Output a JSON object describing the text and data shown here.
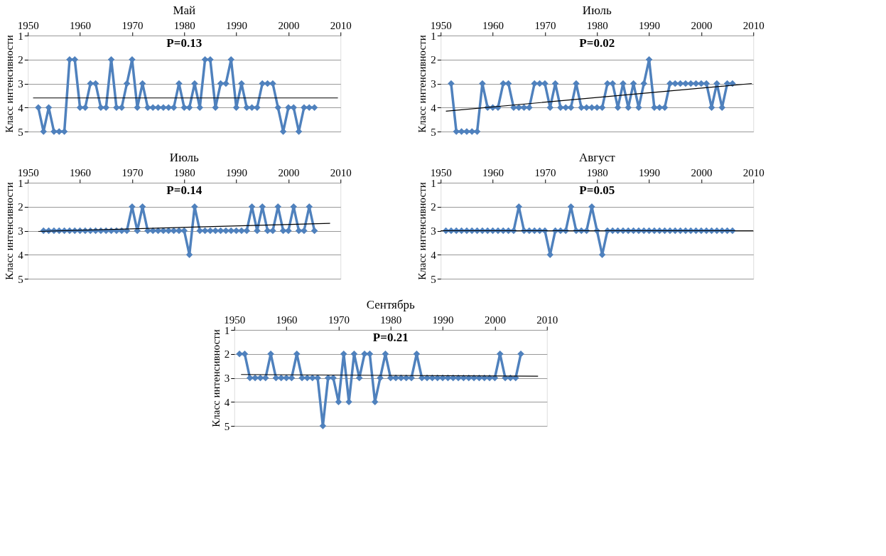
{
  "chart_data": [
    {
      "type": "line",
      "title": "Май",
      "ylabel": "Класс интенсивности",
      "annotations": [
        "P=0.13"
      ],
      "xlim": [
        1950,
        2010
      ],
      "xticks": [
        1950,
        1960,
        1970,
        1980,
        1990,
        2000,
        2010
      ],
      "ylim": [
        5,
        1
      ],
      "yticks": [
        1,
        2,
        3,
        4,
        5
      ],
      "grid": "y",
      "marker": "diamond",
      "series": [
        {
          "color": "#4f81bd",
          "x": [
            1952,
            1953,
            1954,
            1955,
            1956,
            1957,
            1958,
            1959,
            1960,
            1961,
            1962,
            1963,
            1964,
            1965,
            1966,
            1967,
            1968,
            1969,
            1970,
            1971,
            1972,
            1973,
            1974,
            1975,
            1976,
            1977,
            1978,
            1979,
            1980,
            1981,
            1982,
            1983,
            1984,
            1985,
            1986,
            1987,
            1988,
            1989,
            1990,
            1991,
            1992,
            1993,
            1994,
            1995,
            1996,
            1997,
            1998,
            1999,
            2000,
            2001,
            2002,
            2003,
            2004,
            2005
          ],
          "values": [
            4,
            5,
            4,
            5,
            5,
            5,
            2,
            2,
            4,
            4,
            3,
            3,
            4,
            4,
            2,
            4,
            4,
            3,
            2,
            4,
            3,
            4,
            4,
            4,
            4,
            4,
            4,
            3,
            4,
            4,
            3,
            4,
            2,
            2,
            4,
            3,
            3,
            2,
            4,
            3,
            4,
            4,
            4,
            3,
            3,
            3,
            4,
            5,
            4,
            4,
            5,
            4,
            4,
            4
          ]
        },
        {
          "type": "line",
          "marker": "none",
          "color": "#000000",
          "x": [
            1951,
            2009.5
          ],
          "values": [
            3.6,
            3.6
          ]
        }
      ]
    },
    {
      "type": "line",
      "title": "Июль",
      "ylabel": "Класс интенсивности",
      "annotations": [
        "P=0.02"
      ],
      "xlim": [
        1950,
        2010
      ],
      "xticks": [
        1950,
        1960,
        1970,
        1980,
        1990,
        2000,
        2010
      ],
      "ylim": [
        5,
        1
      ],
      "yticks": [
        1,
        2,
        3,
        4,
        5
      ],
      "grid": "y",
      "marker": "diamond",
      "series": [
        {
          "color": "#4f81bd",
          "x": [
            1952,
            1953,
            1954,
            1955,
            1956,
            1957,
            1958,
            1959,
            1960,
            1961,
            1962,
            1963,
            1964,
            1965,
            1966,
            1967,
            1968,
            1969,
            1970,
            1971,
            1972,
            1973,
            1974,
            1975,
            1976,
            1977,
            1978,
            1979,
            1980,
            1981,
            1982,
            1983,
            1984,
            1985,
            1986,
            1987,
            1988,
            1989,
            1990,
            1991,
            1992,
            1993,
            1994,
            1995,
            1996,
            1997,
            1998,
            1999,
            2000,
            2001,
            2002,
            2003,
            2004,
            2005,
            2006
          ],
          "values": [
            3,
            5,
            5,
            5,
            5,
            5,
            3,
            4,
            4,
            4,
            3,
            3,
            4,
            4,
            4,
            4,
            3,
            3,
            3,
            4,
            3,
            4,
            4,
            4,
            3,
            4,
            4,
            4,
            4,
            4,
            3,
            3,
            4,
            3,
            4,
            3,
            4,
            3,
            2,
            4,
            4,
            4,
            3,
            3,
            3,
            3,
            3,
            3,
            3,
            3,
            4,
            3,
            4,
            3,
            3
          ]
        },
        {
          "type": "line",
          "marker": "none",
          "color": "#000000",
          "x": [
            1951,
            2009.7
          ],
          "values": [
            4.15,
            3.0
          ]
        }
      ]
    },
    {
      "type": "line",
      "title": "Июль",
      "ylabel": "Класс интенсивности",
      "annotations": [
        "P=0.14"
      ],
      "xlim": [
        1950,
        2010
      ],
      "xticks": [
        1950,
        1960,
        1970,
        1980,
        1990,
        2000,
        2010
      ],
      "ylim": [
        5,
        1
      ],
      "yticks": [
        1,
        2,
        3,
        4,
        5
      ],
      "grid": "y",
      "marker": "diamond",
      "series": [
        {
          "color": "#4f81bd",
          "x": [
            1953,
            1954,
            1955,
            1956,
            1957,
            1958,
            1959,
            1960,
            1961,
            1962,
            1963,
            1964,
            1965,
            1966,
            1967,
            1968,
            1969,
            1970,
            1971,
            1972,
            1973,
            1974,
            1975,
            1976,
            1977,
            1978,
            1979,
            1980,
            1981,
            1982,
            1983,
            1984,
            1985,
            1986,
            1987,
            1988,
            1989,
            1990,
            1991,
            1992,
            1993,
            1994,
            1995,
            1996,
            1997,
            1998,
            1999,
            2000,
            2001,
            2002,
            2003,
            2004,
            2005
          ],
          "values": [
            3,
            3,
            3,
            3,
            3,
            3,
            3,
            3,
            3,
            3,
            3,
            3,
            3,
            3,
            3,
            3,
            3,
            2,
            3,
            2,
            3,
            3,
            3,
            3,
            3,
            3,
            3,
            3,
            4,
            2,
            3,
            3,
            3,
            3,
            3,
            3,
            3,
            3,
            3,
            3,
            2,
            3,
            2,
            3,
            3,
            2,
            3,
            3,
            2,
            3,
            3,
            2,
            3
          ]
        },
        {
          "type": "line",
          "marker": "none",
          "color": "#000000",
          "x": [
            1952,
            2008
          ],
          "values": [
            3.03,
            2.69
          ]
        }
      ]
    },
    {
      "type": "line",
      "title": "Август",
      "ylabel": "Класс интенсивности",
      "annotations": [
        "P=0.05"
      ],
      "xlim": [
        1950,
        2010
      ],
      "xticks": [
        1950,
        1960,
        1970,
        1980,
        1990,
        2000,
        2010
      ],
      "ylim": [
        5,
        1
      ],
      "yticks": [
        1,
        2,
        3,
        4,
        5
      ],
      "grid": "y",
      "marker": "diamond",
      "series": [
        {
          "color": "#4f81bd",
          "x": [
            1951,
            1952,
            1953,
            1954,
            1955,
            1956,
            1957,
            1958,
            1959,
            1960,
            1961,
            1962,
            1963,
            1964,
            1965,
            1966,
            1967,
            1968,
            1969,
            1970,
            1971,
            1972,
            1973,
            1974,
            1975,
            1976,
            1977,
            1978,
            1979,
            1980,
            1981,
            1982,
            1983,
            1984,
            1985,
            1986,
            1987,
            1988,
            1989,
            1990,
            1991,
            1992,
            1993,
            1994,
            1995,
            1996,
            1997,
            1998,
            1999,
            2000,
            2001,
            2002,
            2003,
            2004,
            2005,
            2006
          ],
          "values": [
            3,
            3,
            3,
            3,
            3,
            3,
            3,
            3,
            3,
            3,
            3,
            3,
            3,
            3,
            2,
            3,
            3,
            3,
            3,
            3,
            4,
            3,
            3,
            3,
            2,
            3,
            3,
            3,
            2,
            3,
            4,
            3,
            3,
            3,
            3,
            3,
            3,
            3,
            3,
            3,
            3,
            3,
            3,
            3,
            3,
            3,
            3,
            3,
            3,
            3,
            3,
            3,
            3,
            3,
            3,
            3
          ]
        },
        {
          "type": "line",
          "marker": "none",
          "color": "#000000",
          "x": [
            1950,
            2010
          ],
          "values": [
            3,
            3
          ]
        }
      ]
    },
    {
      "type": "line",
      "title": "Сентябрь",
      "ylabel": "Класс интенсивности",
      "annotations": [
        "P=0.21"
      ],
      "xlim": [
        1950,
        2010
      ],
      "xticks": [
        1950,
        1960,
        1970,
        1980,
        1990,
        2000,
        2010
      ],
      "ylim": [
        5,
        1
      ],
      "yticks": [
        1,
        2,
        3,
        4,
        5
      ],
      "grid": "y",
      "marker": "diamond",
      "series": [
        {
          "color": "#4f81bd",
          "x": [
            1951,
            1952,
            1953,
            1954,
            1955,
            1956,
            1957,
            1958,
            1959,
            1960,
            1961,
            1962,
            1963,
            1964,
            1965,
            1966,
            1967,
            1968,
            1969,
            1970,
            1971,
            1972,
            1973,
            1974,
            1975,
            1976,
            1977,
            1978,
            1979,
            1980,
            1981,
            1982,
            1983,
            1984,
            1985,
            1986,
            1987,
            1988,
            1989,
            1990,
            1991,
            1992,
            1993,
            1994,
            1995,
            1996,
            1997,
            1998,
            1999,
            2000,
            2001,
            2002,
            2003,
            2004,
            2005
          ],
          "values": [
            2,
            2,
            3,
            3,
            3,
            3,
            2,
            3,
            3,
            3,
            3,
            2,
            3,
            3,
            3,
            3,
            5,
            3,
            3,
            4,
            2,
            4,
            2,
            3,
            2,
            2,
            4,
            3,
            2,
            3,
            3,
            3,
            3,
            3,
            2,
            3,
            3,
            3,
            3,
            3,
            3,
            3,
            3,
            3,
            3,
            3,
            3,
            3,
            3,
            3,
            2,
            3,
            3,
            3,
            2
          ]
        },
        {
          "type": "line",
          "marker": "none",
          "color": "#000000",
          "x": [
            1951.3,
            2008.3
          ],
          "values": [
            2.86,
            2.93
          ]
        }
      ]
    }
  ]
}
